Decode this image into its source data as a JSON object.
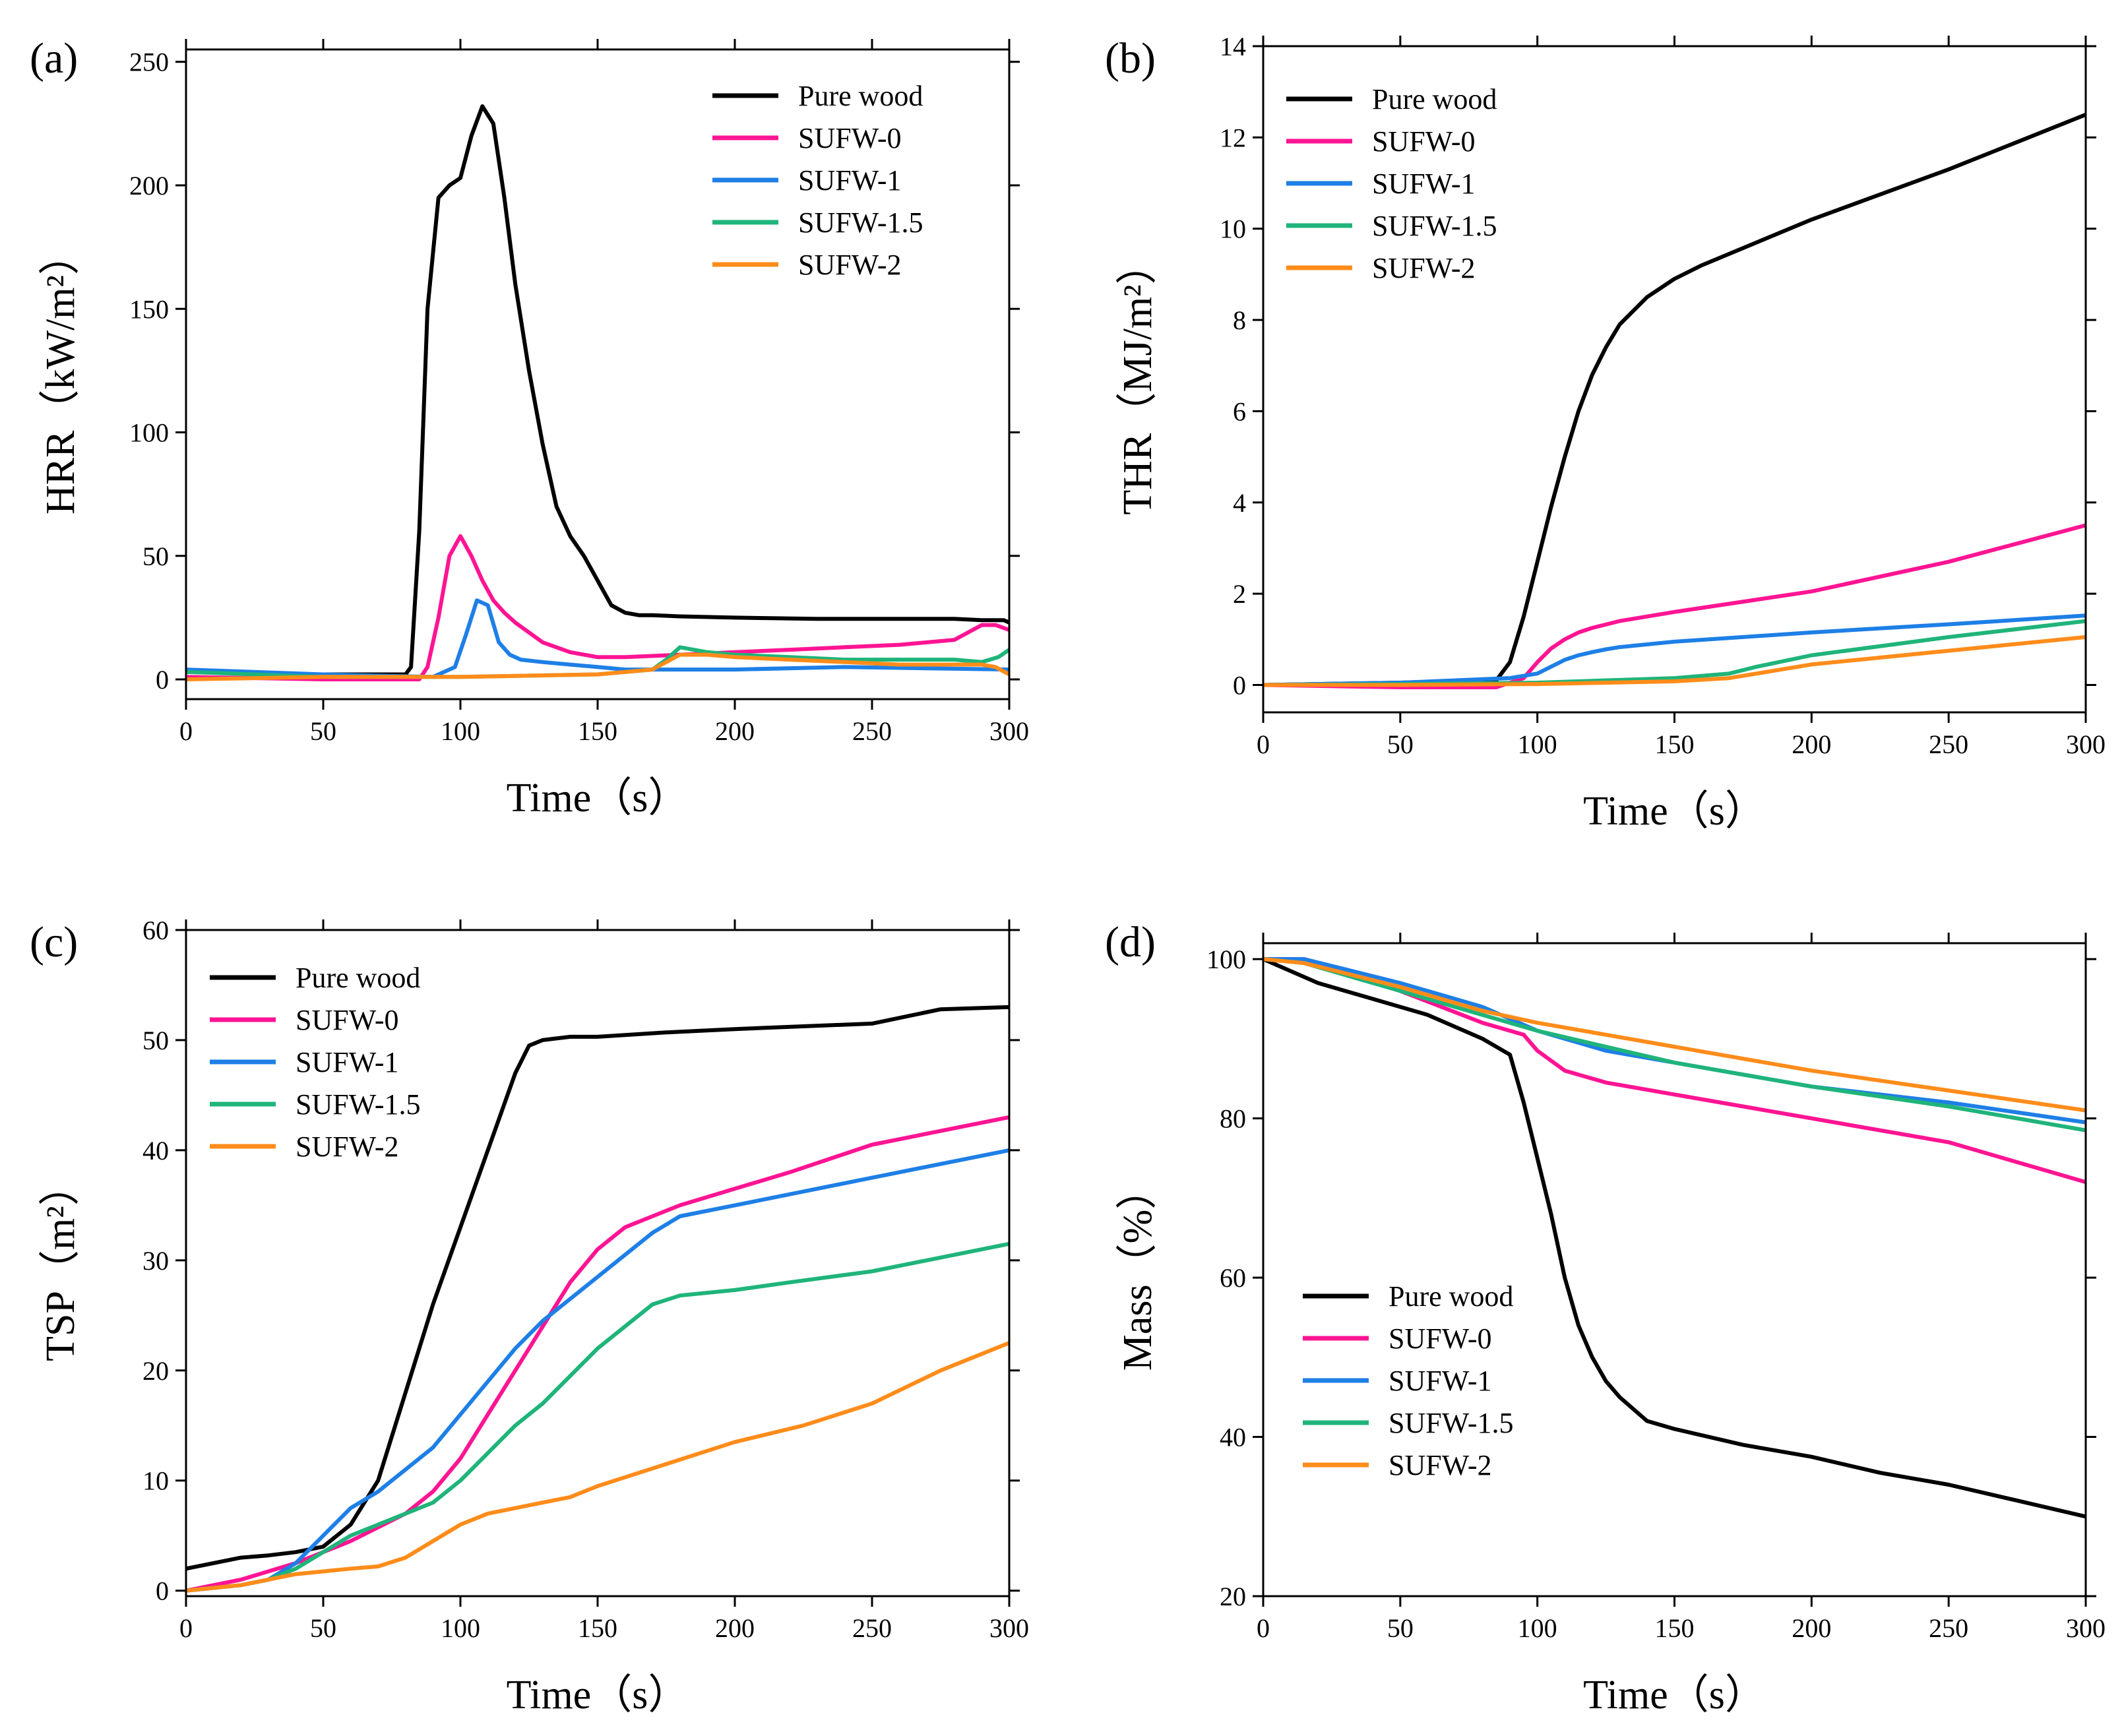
{
  "colors": {
    "Pure wood": "#000000",
    "SUFW-0": "#ff1493",
    "SUFW-1": "#1e7fe6",
    "SUFW-1.5": "#1fb47a",
    "SUFW-2": "#ff8c1a"
  },
  "chart_data": [
    {
      "panel": "(a)",
      "type": "line",
      "title": "",
      "xlabel": "Time（s）",
      "ylabel": "HRR（kW/m²）",
      "xlim": [
        0,
        300
      ],
      "ylim": [
        -8,
        255
      ],
      "xticks": [
        0,
        50,
        100,
        150,
        200,
        250,
        300
      ],
      "yticks": [
        0,
        50,
        100,
        150,
        200,
        250
      ],
      "legend_position": "top-right",
      "series": [
        {
          "name": "Pure wood",
          "x": [
            0,
            40,
            80,
            82,
            85,
            88,
            92,
            96,
            100,
            104,
            108,
            112,
            116,
            120,
            125,
            130,
            135,
            140,
            145,
            150,
            155,
            160,
            165,
            170,
            180,
            200,
            230,
            250,
            280,
            290,
            298,
            300
          ],
          "y": [
            3,
            2,
            2,
            5,
            60,
            150,
            195,
            200,
            203,
            220,
            232,
            225,
            195,
            160,
            125,
            95,
            70,
            58,
            50,
            40,
            30,
            27,
            26,
            26,
            25.5,
            25,
            24.5,
            24.5,
            24.5,
            24,
            24,
            23
          ]
        },
        {
          "name": "SUFW-0",
          "x": [
            0,
            50,
            85,
            88,
            92,
            96,
            100,
            104,
            108,
            112,
            116,
            120,
            130,
            140,
            150,
            160,
            180,
            200,
            220,
            240,
            260,
            280,
            290,
            295,
            300
          ],
          "y": [
            1,
            0,
            0,
            5,
            25,
            50,
            58,
            50,
            40,
            32,
            27,
            23,
            15,
            11,
            9,
            9,
            10,
            11,
            12,
            13,
            14,
            16,
            22,
            22,
            20
          ]
        },
        {
          "name": "SUFW-1",
          "x": [
            0,
            50,
            90,
            98,
            102,
            106,
            110,
            114,
            118,
            122,
            130,
            140,
            150,
            160,
            200,
            240,
            300
          ],
          "y": [
            4,
            2,
            1,
            5,
            18,
            32,
            30,
            15,
            10,
            8,
            7,
            6,
            5,
            4,
            4,
            5,
            4
          ]
        },
        {
          "name": "SUFW-1.5",
          "x": [
            0,
            50,
            100,
            150,
            170,
            175,
            180,
            185,
            190,
            200,
            220,
            240,
            260,
            280,
            290,
            296,
            300
          ],
          "y": [
            3,
            1,
            1,
            2,
            4,
            8,
            13,
            12,
            11,
            10,
            9,
            8,
            8,
            8,
            7,
            9,
            12
          ]
        },
        {
          "name": "SUFW-2",
          "x": [
            0,
            50,
            100,
            150,
            170,
            175,
            180,
            185,
            190,
            200,
            220,
            240,
            260,
            280,
            290,
            295,
            300
          ],
          "y": [
            0,
            1,
            1,
            2,
            4,
            7,
            10,
            10,
            10,
            9,
            8,
            7,
            6,
            6,
            6,
            5,
            2
          ]
        }
      ]
    },
    {
      "panel": "(b)",
      "type": "line",
      "title": "",
      "xlabel": "Time（s）",
      "ylabel": "THR（MJ/m²）",
      "xlim": [
        0,
        300
      ],
      "ylim": [
        -0.6,
        14
      ],
      "xticks": [
        0,
        50,
        100,
        150,
        200,
        250,
        300
      ],
      "yticks": [
        0,
        2,
        4,
        6,
        8,
        10,
        12,
        14
      ],
      "legend_position": "top-left",
      "series": [
        {
          "name": "Pure wood",
          "x": [
            0,
            50,
            85,
            90,
            95,
            100,
            105,
            110,
            115,
            120,
            125,
            130,
            140,
            150,
            160,
            180,
            200,
            250,
            300
          ],
          "y": [
            0,
            0.05,
            0.1,
            0.5,
            1.5,
            2.7,
            3.9,
            5.0,
            6.0,
            6.8,
            7.4,
            7.9,
            8.5,
            8.9,
            9.2,
            9.7,
            10.2,
            11.3,
            12.5
          ]
        },
        {
          "name": "SUFW-0",
          "x": [
            0,
            50,
            85,
            95,
            100,
            105,
            110,
            115,
            120,
            130,
            150,
            200,
            250,
            300
          ],
          "y": [
            0,
            -0.05,
            -0.05,
            0.15,
            0.5,
            0.8,
            1.0,
            1.15,
            1.25,
            1.4,
            1.6,
            2.05,
            2.7,
            3.5
          ]
        },
        {
          "name": "SUFW-1",
          "x": [
            0,
            50,
            90,
            100,
            105,
            110,
            115,
            120,
            125,
            130,
            150,
            200,
            250,
            300
          ],
          "y": [
            0,
            0.05,
            0.15,
            0.25,
            0.4,
            0.55,
            0.65,
            0.72,
            0.78,
            0.83,
            0.95,
            1.15,
            1.33,
            1.52
          ]
        },
        {
          "name": "SUFW-1.5",
          "x": [
            0,
            50,
            100,
            150,
            170,
            180,
            200,
            250,
            300
          ],
          "y": [
            0,
            0.02,
            0.05,
            0.15,
            0.25,
            0.4,
            0.65,
            1.05,
            1.4
          ]
        },
        {
          "name": "SUFW-2",
          "x": [
            0,
            50,
            100,
            150,
            170,
            180,
            200,
            250,
            300
          ],
          "y": [
            0,
            0,
            0.02,
            0.08,
            0.15,
            0.25,
            0.45,
            0.75,
            1.05
          ]
        }
      ]
    },
    {
      "panel": "(c)",
      "type": "line",
      "title": "",
      "xlabel": "Time（s）",
      "ylabel": "TSP（m²）",
      "xlim": [
        0,
        300
      ],
      "ylim": [
        -0.5,
        60
      ],
      "xticks": [
        0,
        50,
        100,
        150,
        200,
        250,
        300
      ],
      "yticks": [
        0,
        10,
        20,
        30,
        40,
        50,
        60
      ],
      "legend_position": "top-left",
      "series": [
        {
          "name": "Pure wood",
          "x": [
            0,
            10,
            20,
            30,
            40,
            50,
            60,
            70,
            80,
            90,
            100,
            110,
            120,
            125,
            130,
            140,
            150,
            175,
            200,
            250,
            275,
            300
          ],
          "y": [
            2,
            2.5,
            3,
            3.2,
            3.5,
            4,
            6,
            10,
            18,
            26,
            33,
            40,
            47,
            49.5,
            50,
            50.3,
            50.3,
            50.7,
            51,
            51.5,
            52.8,
            53
          ]
        },
        {
          "name": "SUFW-0",
          "x": [
            0,
            20,
            40,
            60,
            80,
            90,
            100,
            110,
            120,
            130,
            140,
            150,
            160,
            170,
            180,
            200,
            220,
            250,
            300
          ],
          "y": [
            0,
            1,
            2.5,
            4.5,
            7,
            9,
            12,
            16,
            20,
            24,
            28,
            31,
            33,
            34,
            35,
            36.5,
            38,
            40.5,
            43
          ]
        },
        {
          "name": "SUFW-1",
          "x": [
            0,
            20,
            30,
            40,
            50,
            60,
            70,
            80,
            90,
            100,
            110,
            120,
            130,
            140,
            150,
            160,
            170,
            180,
            200,
            220,
            250,
            300
          ],
          "y": [
            0,
            0.5,
            1,
            2.5,
            5,
            7.5,
            9,
            11,
            13,
            16,
            19,
            22,
            24.5,
            26.5,
            28.5,
            30.5,
            32.5,
            34,
            35,
            36,
            37.5,
            40
          ]
        },
        {
          "name": "SUFW-1.5",
          "x": [
            0,
            20,
            30,
            40,
            50,
            60,
            70,
            80,
            90,
            100,
            110,
            120,
            130,
            140,
            150,
            160,
            170,
            180,
            200,
            220,
            250,
            270,
            300
          ],
          "y": [
            0,
            0.5,
            1,
            2,
            3.5,
            5,
            6,
            7,
            8,
            10,
            12.5,
            15,
            17,
            19.5,
            22,
            24,
            26,
            26.8,
            27.3,
            28,
            29,
            30,
            31.5
          ]
        },
        {
          "name": "SUFW-2",
          "x": [
            0,
            20,
            40,
            60,
            70,
            80,
            90,
            100,
            110,
            120,
            130,
            140,
            150,
            175,
            200,
            225,
            250,
            275,
            300
          ],
          "y": [
            0,
            0.5,
            1.5,
            2,
            2.2,
            3,
            4.5,
            6,
            7,
            7.5,
            8,
            8.5,
            9.5,
            11.5,
            13.5,
            15,
            17,
            20,
            22.5
          ]
        }
      ]
    },
    {
      "panel": "(d)",
      "type": "line",
      "title": "",
      "xlabel": "Time（s）",
      "ylabel": "Mass（%）",
      "xlim": [
        0,
        300
      ],
      "ylim": [
        20,
        102
      ],
      "xticks": [
        0,
        50,
        100,
        150,
        200,
        250,
        300
      ],
      "yticks": [
        20,
        40,
        60,
        80,
        100
      ],
      "legend_position": "bottom-left",
      "series": [
        {
          "name": "Pure wood",
          "x": [
            0,
            20,
            40,
            60,
            80,
            90,
            95,
            100,
            105,
            110,
            115,
            120,
            125,
            130,
            140,
            150,
            175,
            200,
            225,
            250,
            275,
            300
          ],
          "y": [
            100,
            97,
            95,
            93,
            90,
            88,
            82,
            75,
            68,
            60,
            54,
            50,
            47,
            45,
            42,
            41,
            39,
            37.5,
            35.5,
            34,
            32,
            30
          ]
        },
        {
          "name": "SUFW-0",
          "x": [
            0,
            15,
            50,
            80,
            95,
            100,
            110,
            125,
            150,
            175,
            200,
            250,
            300
          ],
          "y": [
            100,
            100,
            96,
            92,
            90.5,
            88.5,
            86,
            84.5,
            83,
            81.5,
            80,
            77,
            72
          ]
        },
        {
          "name": "SUFW-1",
          "x": [
            0,
            15,
            50,
            80,
            100,
            125,
            150,
            200,
            250,
            300
          ],
          "y": [
            100,
            100,
            97,
            94,
            91,
            88.5,
            87,
            84,
            82,
            79.5
          ]
        },
        {
          "name": "SUFW-1.5",
          "x": [
            0,
            15,
            50,
            80,
            100,
            125,
            150,
            200,
            250,
            300
          ],
          "y": [
            100,
            99.5,
            96,
            93,
            91,
            89,
            87,
            84,
            81.5,
            78.5
          ]
        },
        {
          "name": "SUFW-2",
          "x": [
            0,
            15,
            50,
            80,
            100,
            125,
            150,
            200,
            250,
            300
          ],
          "y": [
            100,
            99.5,
            96.5,
            93.5,
            92,
            90.5,
            89,
            86,
            83.5,
            81
          ]
        }
      ]
    }
  ]
}
